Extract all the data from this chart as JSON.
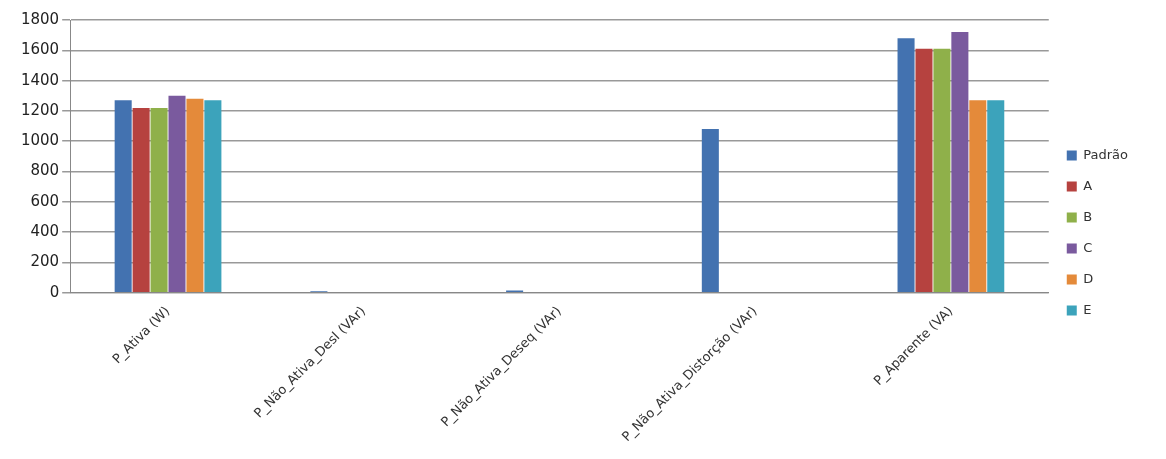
{
  "chart_data": {
    "type": "bar",
    "categories": [
      "P_Ativa (W)",
      "P_Não_Ativa_Desl (VAr)",
      "P_Não_Ativa_Deseq (VAr)",
      "P_Não_Ativa_Distorção (VAr)",
      "P_Aparente (VA)"
    ],
    "series": [
      {
        "name": "Padrão",
        "color": "#4372b0",
        "values": [
          1270,
          10,
          15,
          1080,
          1680
        ]
      },
      {
        "name": "A",
        "color": "#b6423f",
        "values": [
          1220,
          0,
          0,
          0,
          1610
        ]
      },
      {
        "name": "B",
        "color": "#8fb04a",
        "values": [
          1220,
          0,
          0,
          0,
          1610
        ]
      },
      {
        "name": "C",
        "color": "#7a5a9e",
        "values": [
          1300,
          0,
          0,
          0,
          1720
        ]
      },
      {
        "name": "D",
        "color": "#e48a3a",
        "values": [
          1280,
          0,
          0,
          0,
          1270
        ]
      },
      {
        "name": "E",
        "color": "#3ca3bb",
        "values": [
          1270,
          0,
          0,
          0,
          1270
        ]
      }
    ],
    "ylim": [
      0,
      1800
    ],
    "yticks": [
      0,
      200,
      400,
      600,
      800,
      1000,
      1200,
      1400,
      1600,
      1800
    ],
    "grid": "y",
    "legend": "right"
  }
}
